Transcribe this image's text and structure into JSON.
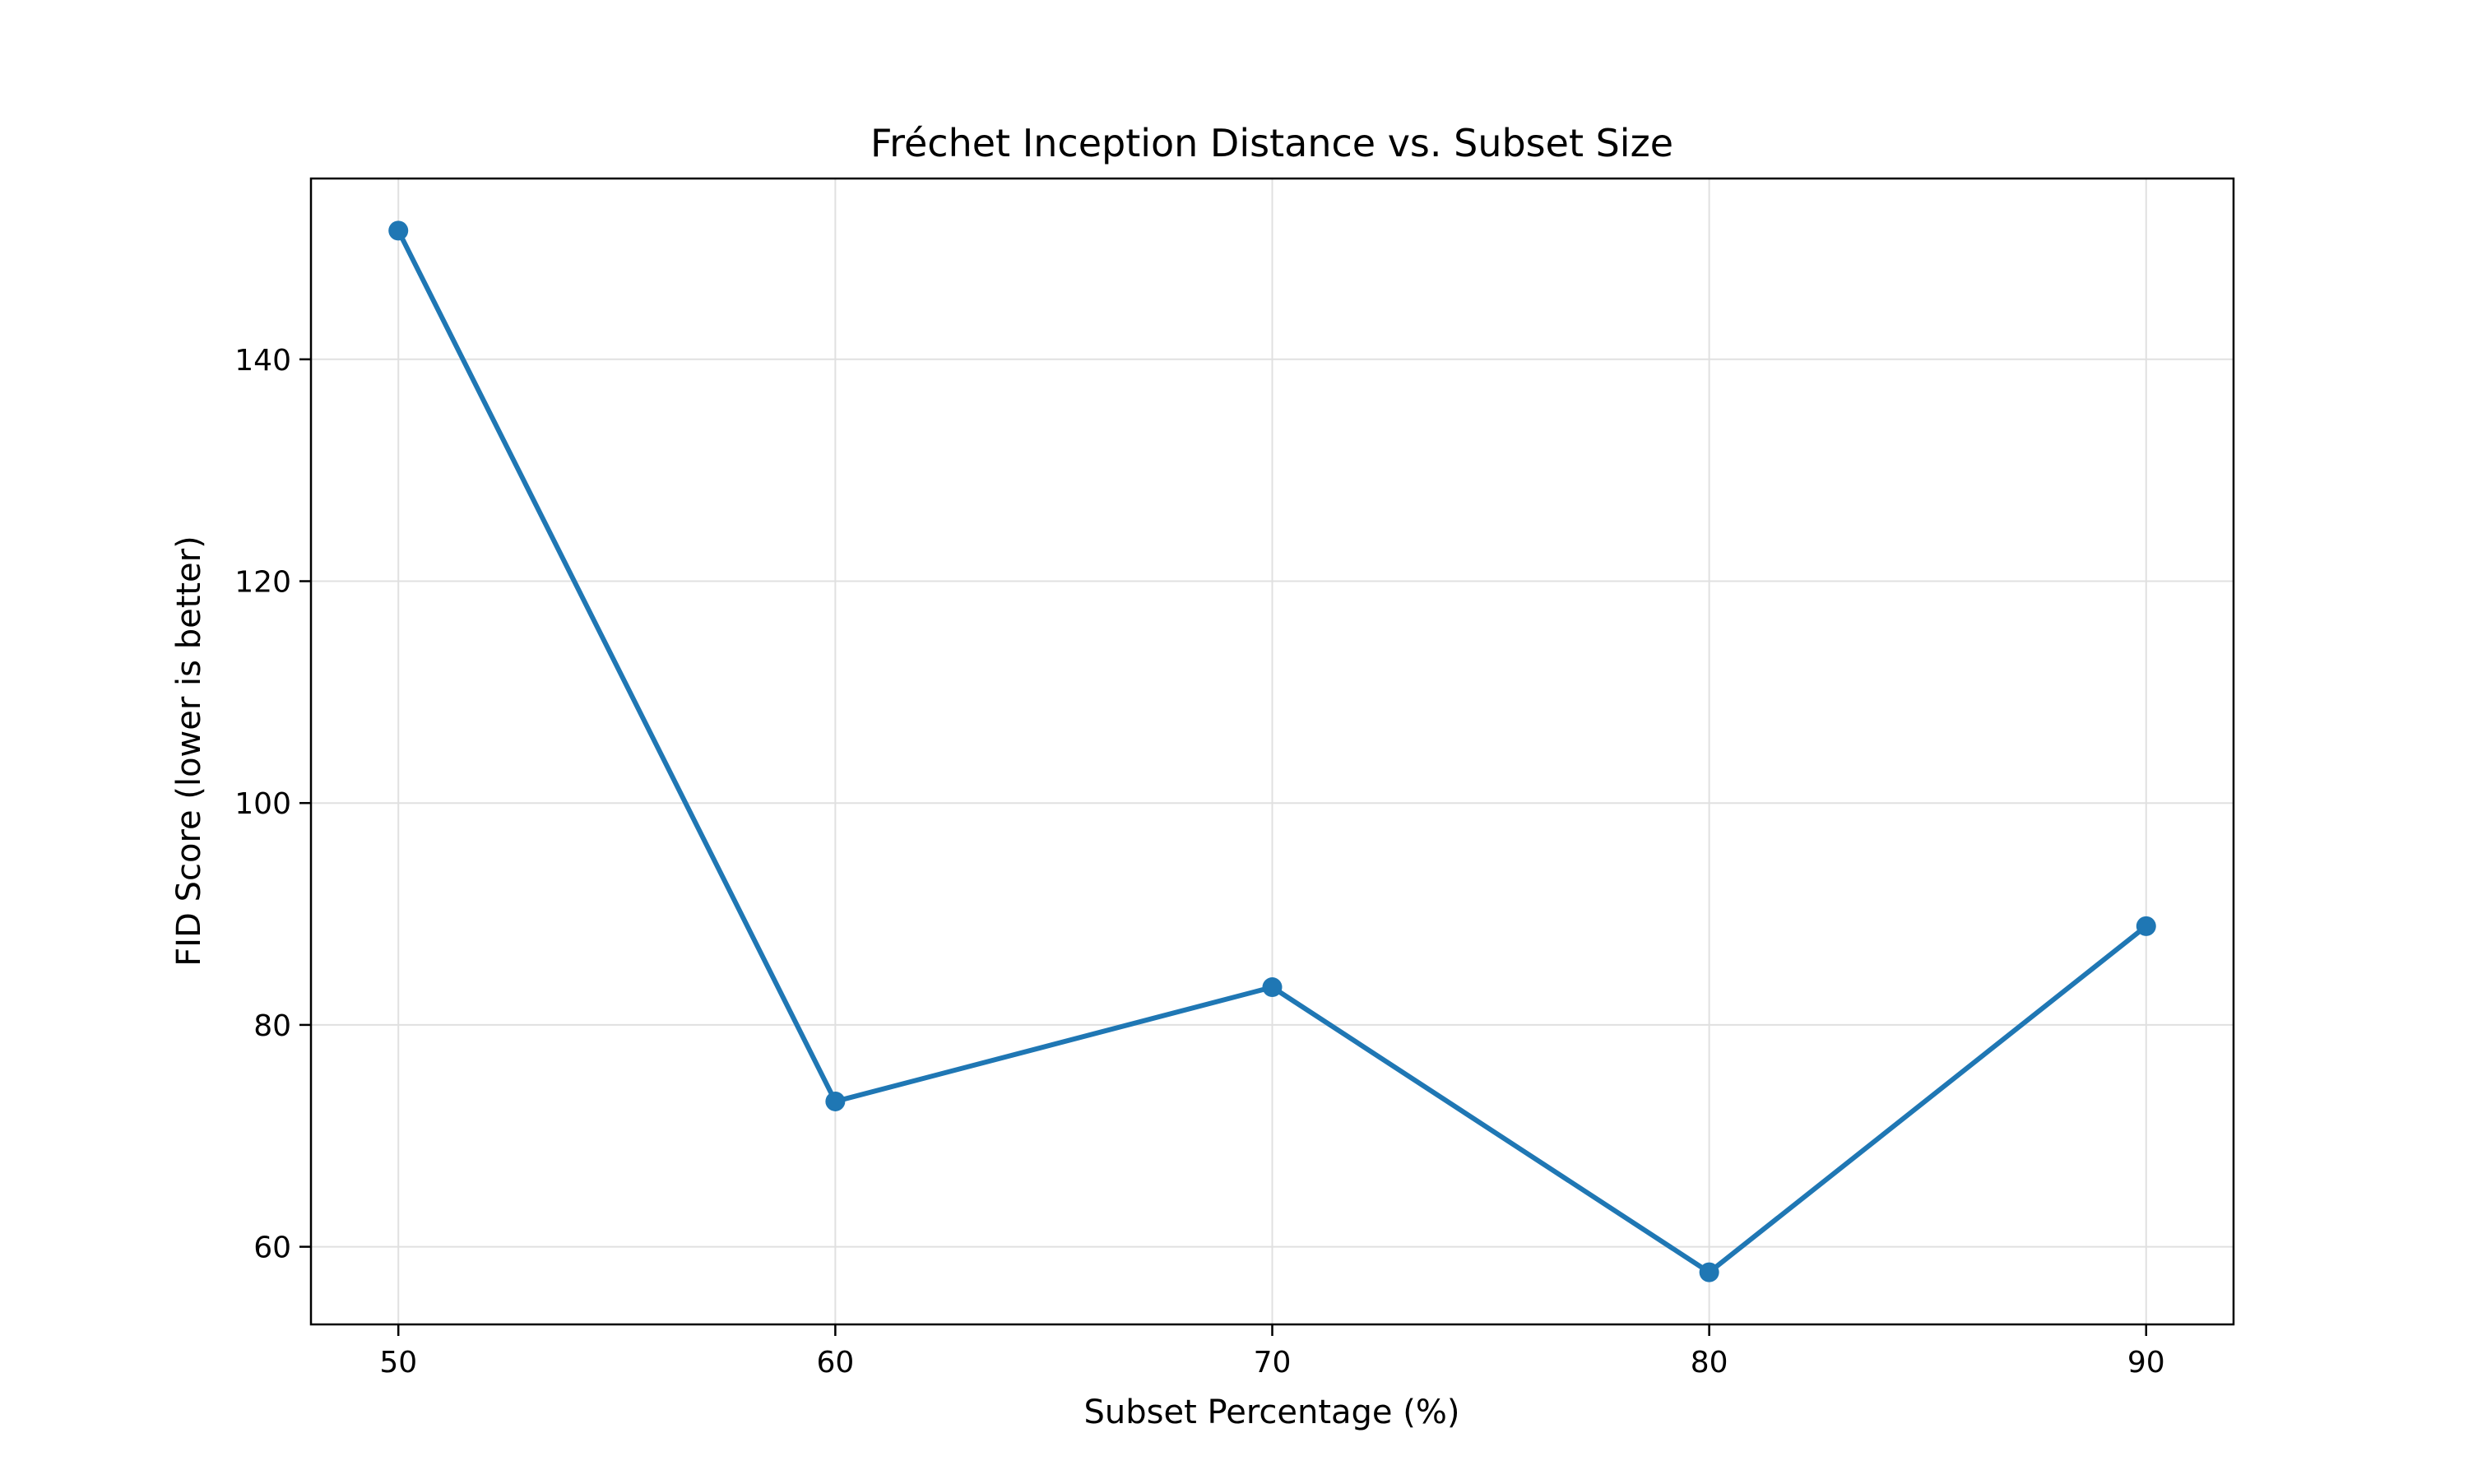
{
  "chart_data": {
    "type": "line",
    "title": "Fréchet Inception Distance vs. Subset Size",
    "xlabel": "Subset Percentage (%)",
    "ylabel": "FID Score (lower is better)",
    "x": [
      50,
      60,
      70,
      80,
      90
    ],
    "series": [
      {
        "values": [
          151.6,
          73.1,
          83.4,
          57.7,
          88.9
        ]
      }
    ],
    "xlim": [
      48,
      92
    ],
    "ylim": [
      53,
      156.3
    ],
    "xticks": [
      50,
      60,
      70,
      80,
      90
    ],
    "yticks": [
      60,
      80,
      100,
      120,
      140
    ],
    "grid": true,
    "legend": "none",
    "colors": {
      "line": "#1f77b4",
      "marker": "#1f77b4",
      "grid": "#e0e0e0",
      "axes": "#000000"
    }
  }
}
